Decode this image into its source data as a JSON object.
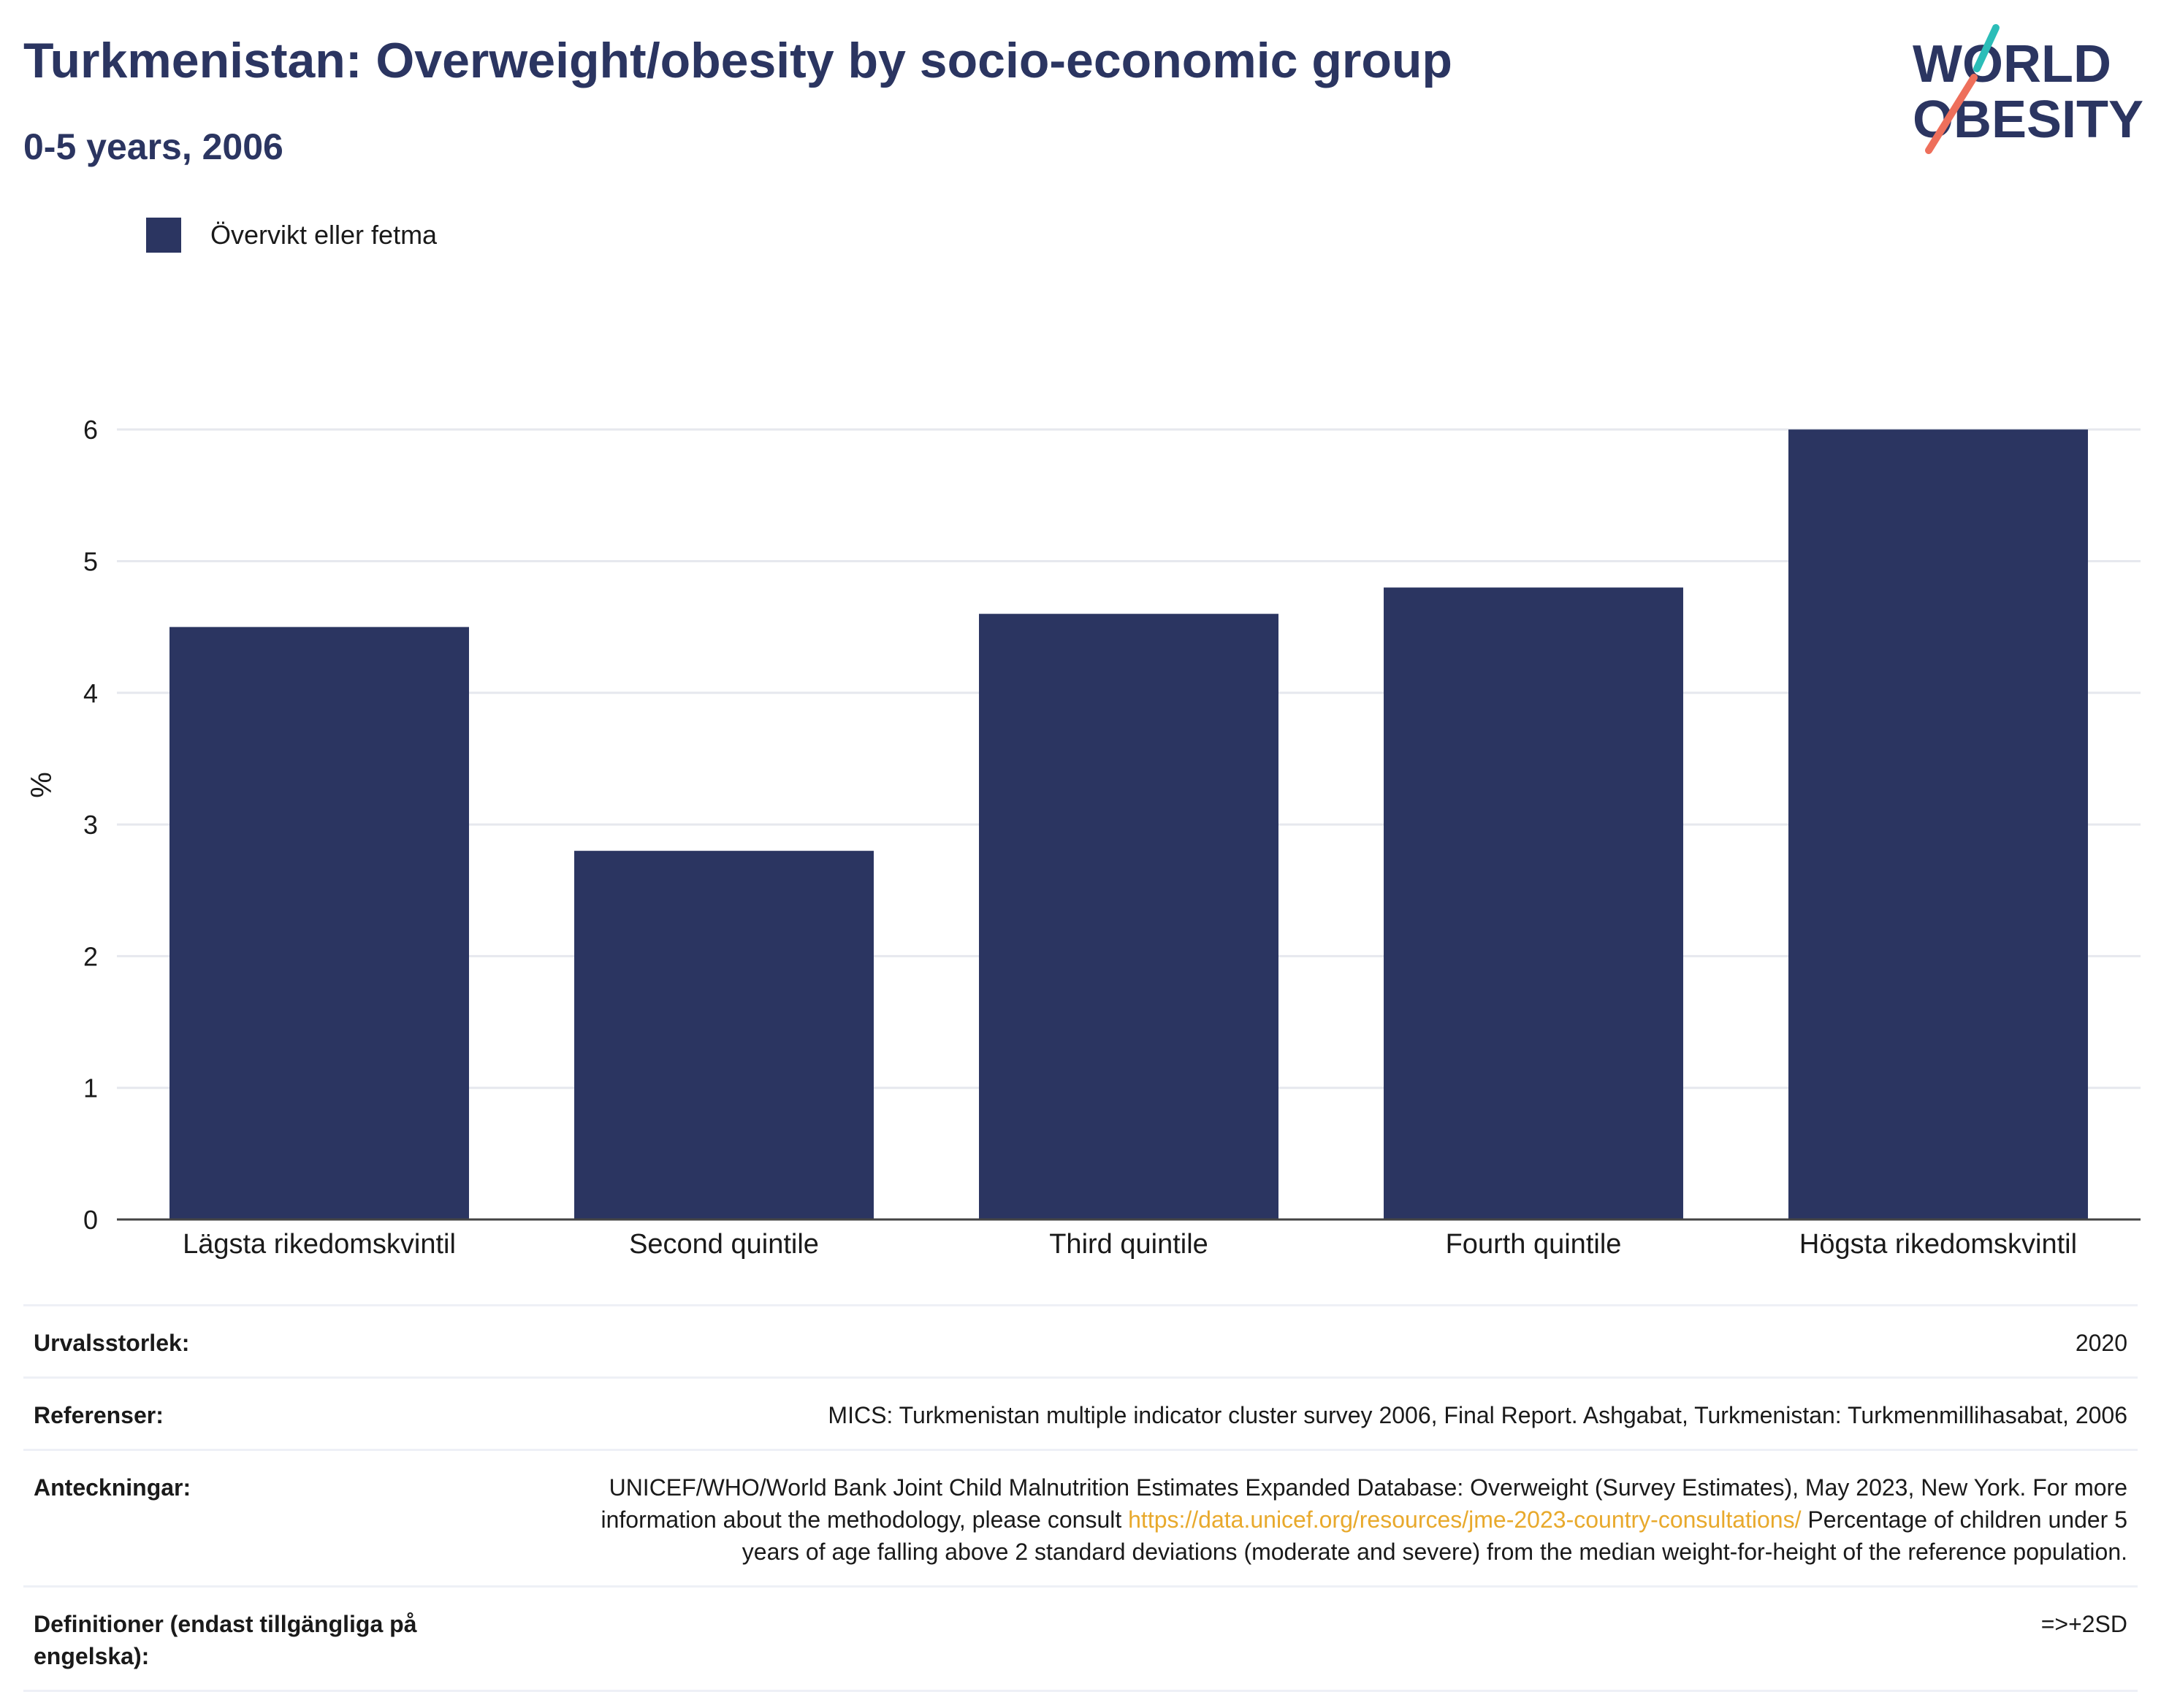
{
  "header": {
    "title": "Turkmenistan: Overweight/obesity by socio-economic group",
    "subtitle": "0-5 years, 2006"
  },
  "logo": {
    "line1": "WORLD",
    "line2": "OBESITY",
    "accent_teal": "#2bbdb8",
    "accent_coral": "#ee6f5b"
  },
  "colors": {
    "bar": "#2b3561",
    "grid": "#e6e8ee",
    "axis": "#444444"
  },
  "chart_data": {
    "type": "bar",
    "categories": [
      "Lägsta rikedomskvintil",
      "Second quintile",
      "Third quintile",
      "Fourth quintile",
      "Högsta rikedomskvintil"
    ],
    "series": [
      {
        "name": "Övervikt eller fetma",
        "values": [
          4.5,
          2.8,
          4.6,
          4.8,
          6.0
        ]
      }
    ],
    "ylabel": "%",
    "ylim": [
      0,
      6.6
    ],
    "yticks": [
      "0",
      "1",
      "2",
      "3",
      "4",
      "5",
      "6"
    ],
    "grid": true,
    "legend": "top-left"
  },
  "info": {
    "rows": [
      {
        "label": "Urvalsstorlek:",
        "value": "2020"
      },
      {
        "label": "Referenser:",
        "value": "MICS: Turkmenistan multiple indicator cluster survey 2006, Final Report. Ashgabat, Turkmenistan: Turkmenmillihasabat, 2006"
      },
      {
        "label": "Anteckningar:",
        "value_pre": "UNICEF/WHO/World Bank Joint Child Malnutrition Estimates Expanded Database: Overweight (Survey Estimates), May 2023, New York. For more information about the methodology, please consult ",
        "link": "https://data.unicef.org/resources/jme-2023-country-consultations/",
        "value_post": " Percentage of children under 5 years of age falling above 2 standard deviations (moderate and severe) from the median weight-for-height of the reference population."
      },
      {
        "label": "Definitioner (endast tillgängliga på engelska):",
        "value": "=>+2SD"
      }
    ]
  }
}
